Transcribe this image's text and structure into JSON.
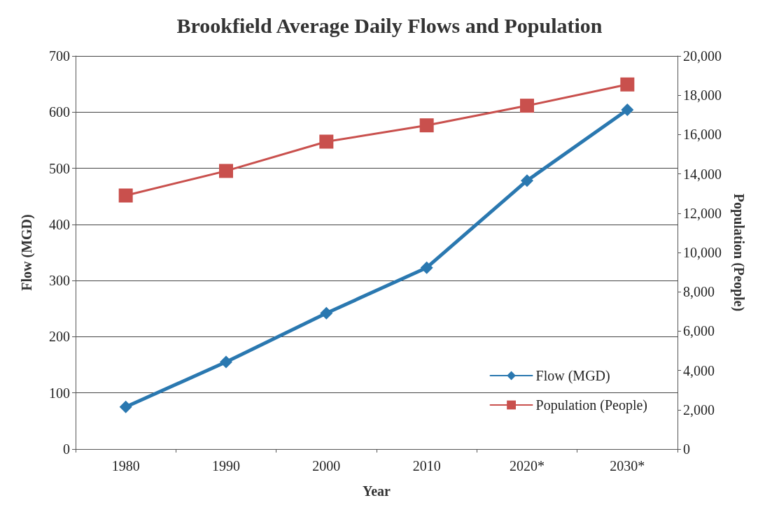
{
  "chart_data": {
    "type": "line",
    "title": "Brookfield Average Daily Flows and Population",
    "xlabel": "Year",
    "ylabel": "Flow (MGD)",
    "y2label": "Population (People)",
    "categories": [
      "1980",
      "1990",
      "2000",
      "2010",
      "2020*",
      "2030*"
    ],
    "series": [
      {
        "name": "Flow (MGD)",
        "color": "#2a78b0",
        "marker": "diamond",
        "values": [
          75,
          155,
          242,
          323,
          478,
          604
        ]
      },
      {
        "name": "Population (People)",
        "color": "#c9504d",
        "marker": "square",
        "axis": "y2",
        "values": [
          12900,
          14150,
          15640,
          16470,
          17470,
          18550
        ]
      }
    ],
    "ylim": [
      0,
      700
    ],
    "yticks": [
      0,
      100,
      200,
      300,
      400,
      500,
      600,
      700
    ],
    "y2lim": [
      0,
      20000
    ],
    "y2ticks": [
      {
        "value": 0,
        "label": "0"
      },
      {
        "value": 2000,
        "label": "2,000"
      },
      {
        "value": 4000,
        "label": "4,000"
      },
      {
        "value": 6000,
        "label": "6,000"
      },
      {
        "value": 8000,
        "label": "8,000"
      },
      {
        "value": 10000,
        "label": "10,000"
      },
      {
        "value": 12000,
        "label": "12,000"
      },
      {
        "value": 14000,
        "label": "14,000"
      },
      {
        "value": 16000,
        "label": "16,000"
      },
      {
        "value": 18000,
        "label": "18,000"
      },
      {
        "value": 20000,
        "label": "20,000"
      }
    ],
    "grid": "y",
    "legend": "bottom right",
    "line_style": "solid"
  }
}
